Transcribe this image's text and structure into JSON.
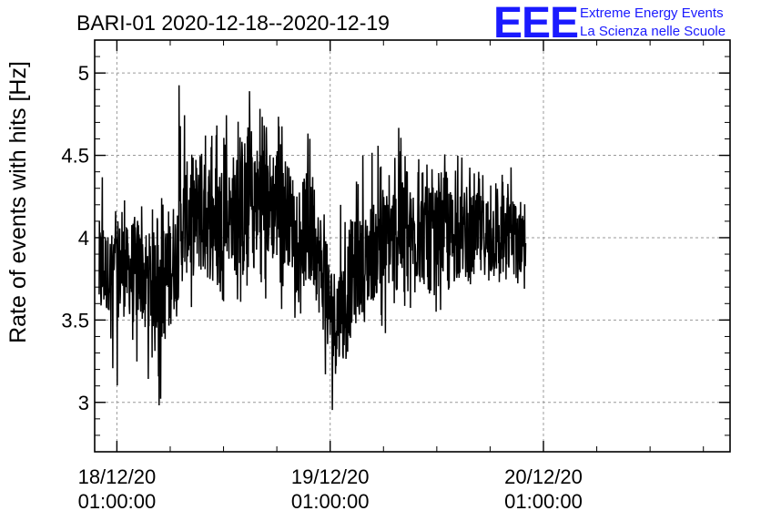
{
  "brand": {
    "logo_text": "EEE",
    "line1": "Extreme Energy Events",
    "line2": "La Scienza nelle Scuole",
    "color": "#1a1aff"
  },
  "chart_data": {
    "type": "line",
    "title": "BARI-01 2020-12-18--2020-12-19",
    "xlabel": "",
    "ylabel": "Rate of events with hits [Hz]",
    "ylim": [
      2.7,
      5.2
    ],
    "yticks": [
      3,
      3.5,
      4,
      4.5,
      5
    ],
    "ytick_labels": [
      "3",
      "3.5",
      "4",
      "4.5",
      "5"
    ],
    "xlim_hours": [
      -2.5,
      69.0
    ],
    "x_ticks": [
      {
        "hours": 0,
        "line1": "18/12/20",
        "line2": "01:00:00"
      },
      {
        "hours": 24,
        "line1": "19/12/20",
        "line2": "01:00:00"
      },
      {
        "hours": 48,
        "line1": "20/12/20",
        "line2": "01:00:00"
      }
    ],
    "x_time_origin": "18/12/20 01:00:00",
    "grid": true,
    "series": [
      {
        "color": "#000000",
        "x_hours": [
          -2.0,
          -1.5,
          -1.0,
          -0.5,
          0.0,
          0.5,
          1.0,
          1.5,
          2.0,
          2.5,
          3.0,
          3.5,
          4.0,
          4.5,
          5.0,
          5.5,
          6.0,
          6.5,
          7.0,
          7.5,
          8.0,
          8.5,
          9.0,
          9.5,
          10.0,
          10.5,
          11.0,
          11.5,
          12.0,
          12.5,
          13.0,
          13.5,
          14.0,
          14.5,
          15.0,
          15.5,
          16.0,
          16.5,
          17.0,
          17.5,
          18.0,
          18.5,
          19.0,
          19.5,
          20.0,
          20.5,
          21.0,
          21.5,
          22.0,
          22.5,
          23.0,
          23.5,
          24.0,
          24.5,
          25.0,
          25.5,
          26.0,
          26.5,
          27.0,
          27.5,
          28.0,
          28.5,
          29.0,
          29.5,
          30.0,
          30.5,
          31.0,
          31.5,
          32.0,
          32.5,
          33.0,
          33.5,
          34.0,
          34.5,
          35.0,
          35.5,
          36.0,
          36.5,
          37.0,
          37.5,
          38.0,
          38.5,
          39.0,
          39.5,
          40.0,
          40.5,
          41.0,
          41.5,
          42.0,
          42.5,
          43.0,
          43.5,
          44.0,
          44.5,
          45.0,
          45.5,
          46.0
        ],
        "mean": [
          3.78,
          3.8,
          3.79,
          3.81,
          3.8,
          3.82,
          3.8,
          3.79,
          3.8,
          3.81,
          3.78,
          3.76,
          3.74,
          3.72,
          3.7,
          3.72,
          3.8,
          3.88,
          3.98,
          4.08,
          4.13,
          4.14,
          4.12,
          4.1,
          4.11,
          4.12,
          4.14,
          4.13,
          4.12,
          4.13,
          4.15,
          4.16,
          4.17,
          4.18,
          4.2,
          4.22,
          4.22,
          4.21,
          4.2,
          4.21,
          4.22,
          4.2,
          4.16,
          4.12,
          4.08,
          4.06,
          4.05,
          4.03,
          3.99,
          3.92,
          3.8,
          3.65,
          3.55,
          3.5,
          3.52,
          3.58,
          3.7,
          3.78,
          3.8,
          3.82,
          3.85,
          3.9,
          3.93,
          3.95,
          3.96,
          3.98,
          4.0,
          4.02,
          4.02,
          4.03,
          4.0,
          4.02,
          4.03,
          4.0,
          4.02,
          4.03,
          4.0,
          4.0,
          4.02,
          4.0,
          4.01,
          4.0,
          4.02,
          4.0,
          4.0,
          4.01,
          4.0,
          4.02,
          4.0,
          4.01,
          4.0,
          4.0,
          4.01,
          4.0,
          4.02,
          4.0,
          4.02
        ],
        "min": [
          3.4,
          3.3,
          3.27,
          3.35,
          3.0,
          3.4,
          3.3,
          3.38,
          3.3,
          3.05,
          3.35,
          3.25,
          3.1,
          3.2,
          2.94,
          3.1,
          3.3,
          3.45,
          3.55,
          3.6,
          3.7,
          3.5,
          3.65,
          3.6,
          3.55,
          3.7,
          3.7,
          3.65,
          3.6,
          3.7,
          3.75,
          3.6,
          3.7,
          3.5,
          3.75,
          3.7,
          3.75,
          3.48,
          3.7,
          3.75,
          3.65,
          3.6,
          3.55,
          3.6,
          3.55,
          3.5,
          3.5,
          3.55,
          3.5,
          3.3,
          3.2,
          3.1,
          2.95,
          3.0,
          3.05,
          3.1,
          3.2,
          3.3,
          3.35,
          3.4,
          3.4,
          3.45,
          3.5,
          3.5,
          3.4,
          3.55,
          3.55,
          3.5,
          3.55,
          3.6,
          3.55,
          3.6,
          3.55,
          3.55,
          3.6,
          3.6,
          3.55,
          3.6,
          3.6,
          3.55,
          3.6,
          3.6,
          3.65,
          3.6,
          3.65,
          3.6,
          3.65,
          3.65,
          3.6,
          3.65,
          3.65,
          3.6,
          3.65,
          3.65,
          3.65,
          3.65,
          3.7
        ],
        "max": [
          4.5,
          4.2,
          4.15,
          4.15,
          4.2,
          4.25,
          4.2,
          4.2,
          4.3,
          4.25,
          4.2,
          4.15,
          4.2,
          4.1,
          4.15,
          4.25,
          4.4,
          4.55,
          4.65,
          4.98,
          4.6,
          4.7,
          4.6,
          4.55,
          4.65,
          4.7,
          4.75,
          4.7,
          4.6,
          4.75,
          4.8,
          4.85,
          4.75,
          4.9,
          4.8,
          4.75,
          4.88,
          4.7,
          4.65,
          4.75,
          4.8,
          4.7,
          4.6,
          4.55,
          4.55,
          4.5,
          4.45,
          4.8,
          4.4,
          4.35,
          4.2,
          4.05,
          4.0,
          3.95,
          4.1,
          4.2,
          4.35,
          4.45,
          4.55,
          4.45,
          4.5,
          4.55,
          4.6,
          4.55,
          4.45,
          4.4,
          4.55,
          4.7,
          4.5,
          4.6,
          4.55,
          4.5,
          4.45,
          4.6,
          4.55,
          4.45,
          4.4,
          4.45,
          4.55,
          4.45,
          4.45,
          4.5,
          4.45,
          4.4,
          4.45,
          4.5,
          4.45,
          4.4,
          4.45,
          4.45,
          4.4,
          4.45,
          4.4,
          4.45,
          4.4,
          4.45,
          4.3
        ]
      }
    ]
  }
}
